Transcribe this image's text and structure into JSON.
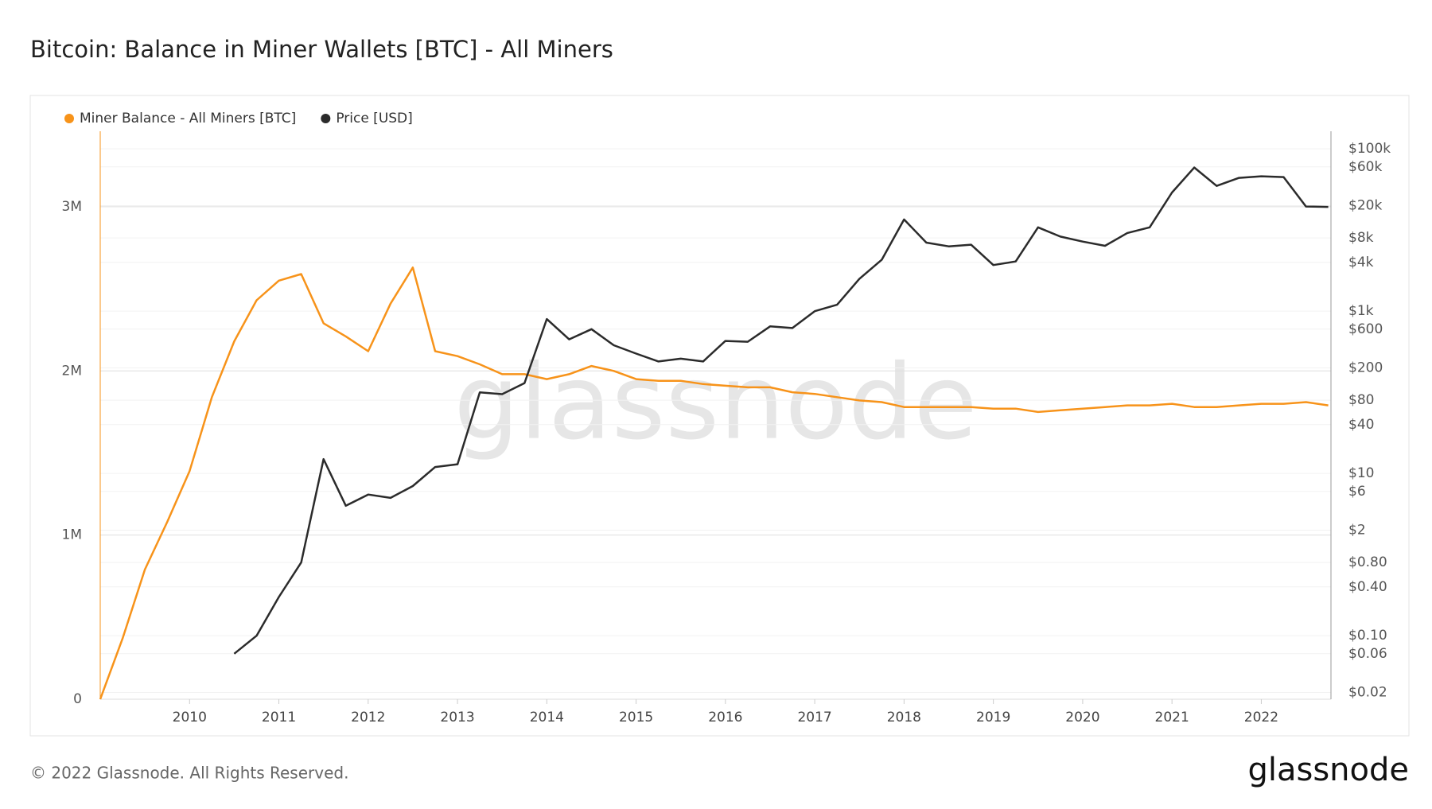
{
  "chart_data": {
    "type": "line",
    "title": "Bitcoin: Balance in Miner Wallets [BTC] - All Miners",
    "watermark": "glassnode",
    "footer": "© 2022 Glassnode. All Rights Reserved.",
    "logo": "glassnode",
    "x": [
      2009.0,
      2009.25,
      2009.5,
      2009.75,
      2010.0,
      2010.25,
      2010.5,
      2010.75,
      2011.0,
      2011.25,
      2011.5,
      2011.75,
      2012.0,
      2012.25,
      2012.5,
      2012.75,
      2013.0,
      2013.25,
      2013.5,
      2013.75,
      2014.0,
      2014.25,
      2014.5,
      2014.75,
      2015.0,
      2015.25,
      2015.5,
      2015.75,
      2016.0,
      2016.25,
      2016.5,
      2016.75,
      2017.0,
      2017.25,
      2017.5,
      2017.75,
      2018.0,
      2018.25,
      2018.5,
      2018.75,
      2019.0,
      2019.25,
      2019.5,
      2019.75,
      2020.0,
      2020.25,
      2020.5,
      2020.75,
      2021.0,
      2021.25,
      2021.5,
      2021.75,
      2022.0,
      2022.25,
      2022.5,
      2022.75
    ],
    "xlim": [
      2009.0,
      2022.78
    ],
    "xticks": [
      2010,
      2011,
      2012,
      2013,
      2014,
      2015,
      2016,
      2017,
      2018,
      2019,
      2020,
      2021,
      2022
    ],
    "ylim": [
      0,
      3460000
    ],
    "yticks": [
      0,
      {
        "value": 1000000,
        "label": "1M"
      },
      {
        "value": 2000000,
        "label": "2M"
      },
      {
        "value": 3000000,
        "label": "3M"
      }
    ],
    "y2_scale": "log",
    "y2lim": [
      0.0165,
      165000
    ],
    "y2ticks": [
      {
        "value": 100000,
        "label": "$100k"
      },
      {
        "value": 60000,
        "label": "$60k"
      },
      {
        "value": 20000,
        "label": "$20k"
      },
      {
        "value": 8000,
        "label": "$8k"
      },
      {
        "value": 4000,
        "label": "$4k"
      },
      {
        "value": 1000,
        "label": "$1k"
      },
      {
        "value": 600,
        "label": "$600"
      },
      {
        "value": 200,
        "label": "$200"
      },
      {
        "value": 80,
        "label": "$80"
      },
      {
        "value": 40,
        "label": "$40"
      },
      {
        "value": 10,
        "label": "$10"
      },
      {
        "value": 6,
        "label": "$6"
      },
      {
        "value": 2,
        "label": "$2"
      },
      {
        "value": 0.8,
        "label": "$0.80"
      },
      {
        "value": 0.4,
        "label": "$0.40"
      },
      {
        "value": 0.1,
        "label": "$0.10"
      },
      {
        "value": 0.06,
        "label": "$0.06"
      },
      {
        "value": 0.02,
        "label": "$0.02"
      }
    ],
    "grid": true,
    "legend": "top-left",
    "series": [
      {
        "name": "Miner Balance - All Miners [BTC]",
        "color": "#f7931a",
        "axis": "y",
        "values": [
          0,
          370000,
          790000,
          1080000,
          1390000,
          1840000,
          2180000,
          2430000,
          2550000,
          2590000,
          2290000,
          2210000,
          2120000,
          2410000,
          2630000,
          2120000,
          2090000,
          2040000,
          1980000,
          1980000,
          1950000,
          1980000,
          2030000,
          2000000,
          1950000,
          1940000,
          1940000,
          1920000,
          1910000,
          1900000,
          1900000,
          1870000,
          1860000,
          1840000,
          1820000,
          1810000,
          1780000,
          1780000,
          1780000,
          1780000,
          1770000,
          1770000,
          1750000,
          1760000,
          1770000,
          1780000,
          1790000,
          1790000,
          1800000,
          1780000,
          1780000,
          1790000,
          1800000,
          1800000,
          1810000,
          1790000
        ]
      },
      {
        "name": "Price [USD]",
        "color": "#2b2b2b",
        "axis": "y2",
        "values": [
          null,
          null,
          null,
          null,
          null,
          null,
          0.06,
          0.1,
          0.3,
          0.8,
          15,
          4,
          5.5,
          5,
          7,
          12,
          13,
          100,
          95,
          130,
          800,
          450,
          600,
          380,
          300,
          240,
          260,
          240,
          430,
          420,
          650,
          620,
          1000,
          1200,
          2500,
          4300,
          13500,
          7000,
          6300,
          6600,
          3700,
          4100,
          10800,
          8300,
          7200,
          6400,
          9200,
          10800,
          29000,
          59000,
          35000,
          44000,
          46000,
          45000,
          19500,
          19300
        ]
      }
    ]
  }
}
